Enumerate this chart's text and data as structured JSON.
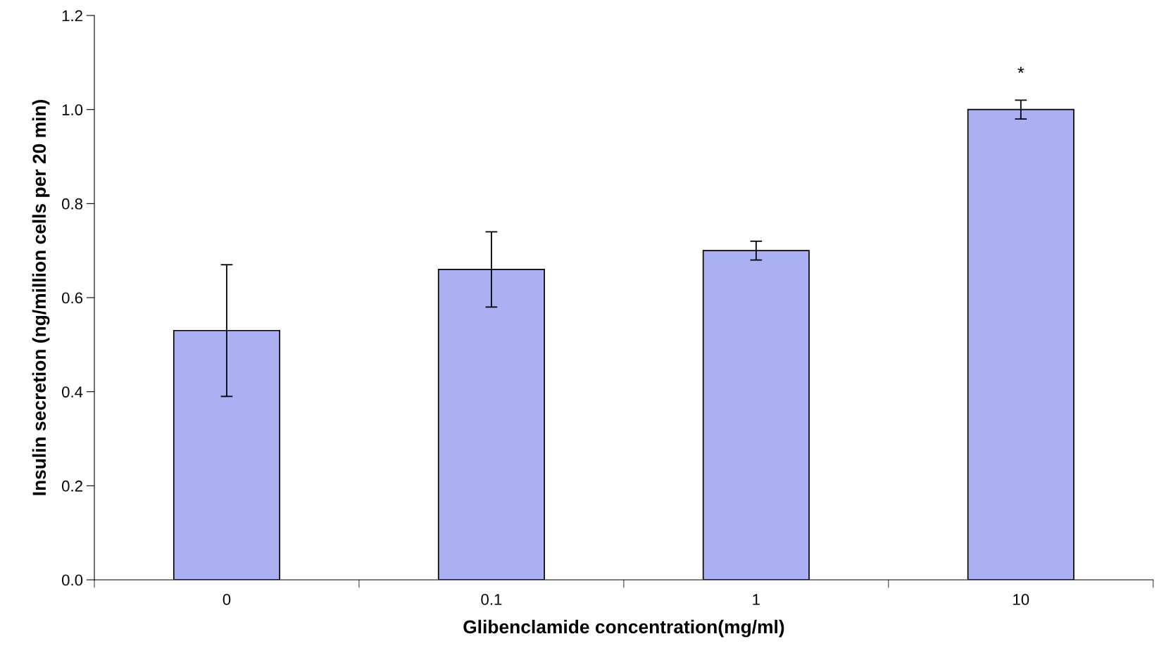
{
  "chart_data": {
    "type": "bar",
    "xlabel": "Glibenclamide concentration(mg/ml)",
    "ylabel": "Insulin secretion (ng/million cells per 20 min)",
    "categories": [
      "0",
      "0.1",
      "1",
      "10"
    ],
    "values": [
      0.53,
      0.66,
      0.7,
      1.0
    ],
    "errors": [
      0.14,
      0.08,
      0.02,
      0.02
    ],
    "color": "#aab0f2",
    "ylim": [
      0,
      1.2
    ],
    "yticks": [
      {
        "value": 0,
        "label": "0.0"
      },
      {
        "value": 0.2,
        "label": "0.2"
      },
      {
        "value": 0.4,
        "label": "0.4"
      },
      {
        "value": 0.6,
        "label": "0.6"
      },
      {
        "value": 0.8,
        "label": "0.8"
      },
      {
        "value": 1.0,
        "label": "1.0"
      },
      {
        "value": 1.2,
        "label": "1.2"
      }
    ],
    "annotations": [
      "*"
    ],
    "grid": false,
    "legend": false
  }
}
